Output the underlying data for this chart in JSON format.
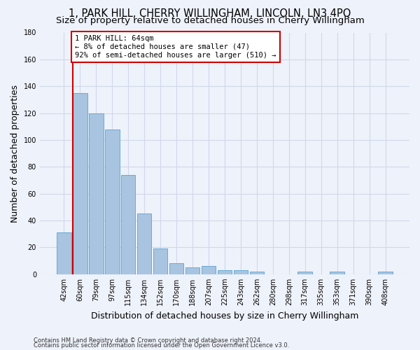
{
  "title": "1, PARK HILL, CHERRY WILLINGHAM, LINCOLN, LN3 4PQ",
  "subtitle": "Size of property relative to detached houses in Cherry Willingham",
  "xlabel": "Distribution of detached houses by size in Cherry Willingham",
  "ylabel": "Number of detached properties",
  "footnote1": "Contains HM Land Registry data © Crown copyright and database right 2024.",
  "footnote2": "Contains public sector information licensed under the Open Government Licence v3.0.",
  "categories": [
    "42sqm",
    "60sqm",
    "79sqm",
    "97sqm",
    "115sqm",
    "134sqm",
    "152sqm",
    "170sqm",
    "188sqm",
    "207sqm",
    "225sqm",
    "243sqm",
    "262sqm",
    "280sqm",
    "298sqm",
    "317sqm",
    "335sqm",
    "353sqm",
    "371sqm",
    "390sqm",
    "408sqm"
  ],
  "values": [
    31,
    135,
    120,
    108,
    74,
    45,
    19,
    8,
    5,
    6,
    3,
    3,
    2,
    0,
    0,
    2,
    0,
    2,
    0,
    0,
    2
  ],
  "bar_color": "#a8c4e0",
  "bar_edge_color": "#6aaad4",
  "annotation_text": "1 PARK HILL: 64sqm\n← 8% of detached houses are smaller (47)\n92% of semi-detached houses are larger (510) →",
  "annotation_box_color": "#ffffff",
  "annotation_border_color": "#cc0000",
  "vline_color": "#cc0000",
  "vline_bar_index": 1,
  "ylim": [
    0,
    180
  ],
  "yticks": [
    0,
    20,
    40,
    60,
    80,
    100,
    120,
    140,
    160,
    180
  ],
  "grid_color": "#d0d8e8",
  "background_color": "#eef2fa",
  "title_fontsize": 10.5,
  "subtitle_fontsize": 9.5,
  "xlabel_fontsize": 9,
  "ylabel_fontsize": 9,
  "tick_fontsize": 7,
  "annotation_fontsize": 7.5,
  "footnote_fontsize": 6
}
